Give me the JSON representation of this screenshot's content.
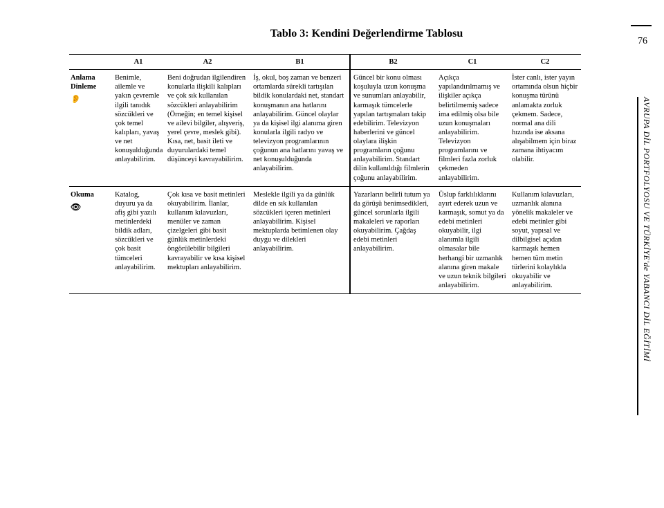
{
  "page_number": "76",
  "side_text": "AVRUPA DİL PORTFOLYOSU VE TÜRKİYE'de YABANCI DİL EĞİTİMİ",
  "title": "Tablo 3: Kendini Değerlendirme Tablosu",
  "headers": [
    "",
    "A1",
    "A2",
    "B1",
    "B2",
    "C1",
    "C2"
  ],
  "rows": [
    {
      "label": "Anlama Dinleme",
      "icon": "👂",
      "cells": [
        "Benimle, ailemle ve yakın çevremle ilgili tanıdık sözcükleri ve çok temel kalıpları, yavaş ve net konuşulduğunda anlayabilirim.",
        "Beni doğrudan ilgilendiren konularla ilişkili kalıpları ve çok sık kullanılan sözcükleri anlayabilirim (Örneğin; en temel kişisel ve ailevi bilgiler, alışveriş, yerel çevre, meslek gibi). Kısa, net, basit ileti ve duyurulardaki temel düşünceyi kavrayabilirim.",
        "İş, okul, boş zaman ve benzeri ortamlarda sürekli tartışılan bildik konulardaki net, standart konuşmanın ana hatlarını anlayabilirim. Güncel olaylar ya da kişisel ilgi alanıma giren konularla ilgili radyo ve televizyon programlarının çoğunun ana hatlarını yavaş ve net konuşulduğunda anlayabilirim.",
        "Güncel bir konu olması koşuluyla uzun konuşma ve sunumları anlayabilir, karmaşık tümcelerle yapılan tartışmaları takip edebilirim. Televizyon haberlerini ve güncel olaylara ilişkin programların çoğunu anlayabilirim. Standart dilin kullanıldığı filmlerin çoğunu anlayabilirim.",
        "Açıkça yapılandırılmamış ve ilişkiler açıkça belirtilmemiş sadece ima edilmiş olsa bile uzun konuşmaları anlayabilirim. Televizyon programlarını ve filmleri fazla zorluk çekmeden anlayabilirim.",
        "İster canlı, ister yayın ortamında olsun hiçbir konuşma türünü anlamakta zorluk çekmem. Sadece, normal ana dili hızında ise aksana alışabilmem için biraz zamana ihtiyacım olabilir."
      ]
    },
    {
      "label": "Okuma",
      "icon": "👁",
      "cells": [
        "Katalog, duyuru ya da afiş gibi yazılı metinlerdeki bildik adları, sözcükleri ve çok basit tümceleri anlayabilirim.",
        "Çok kısa ve basit metinleri okuyabilirim. İlanlar, kullanım kılavuzları, menüler ve zaman çizelgeleri gibi basit günlük metinlerdeki öngörülebilir bilgileri kavrayabilir ve kısa kişisel mektupları anlayabilirim.",
        "Meslekle ilgili ya da günlük dilde en sık kullanılan sözcükleri içeren metinleri anlayabilirim. Kişisel mektuplarda betimlenen olay duygu ve dilekleri anlayabilirim.",
        "Yazarların belirli tutum ya da görüşü benimsedikleri, güncel sorunlarla ilgili makaleleri ve raporları okuyabilirim. Çağdaş edebi metinleri anlayabilirim.",
        "Üslup farklılıklarını ayırt ederek uzun ve karmaşık, somut ya da edebi metinleri okuyabilir, ilgi alanımla ilgili olmasalar bile herhangi bir uzmanlık alanına giren makale ve uzun teknik bilgileri anlayabilirim.",
        "Kullanım kılavuzları, uzmanlık alanına yönelik makaleler ve edebi metinler gibi soyut, yapısal ve dilbilgisel açıdan karmaşık hemen hemen tüm metin türlerini kolaylıkla okuyabilir ve anlayabilirim."
      ]
    }
  ]
}
